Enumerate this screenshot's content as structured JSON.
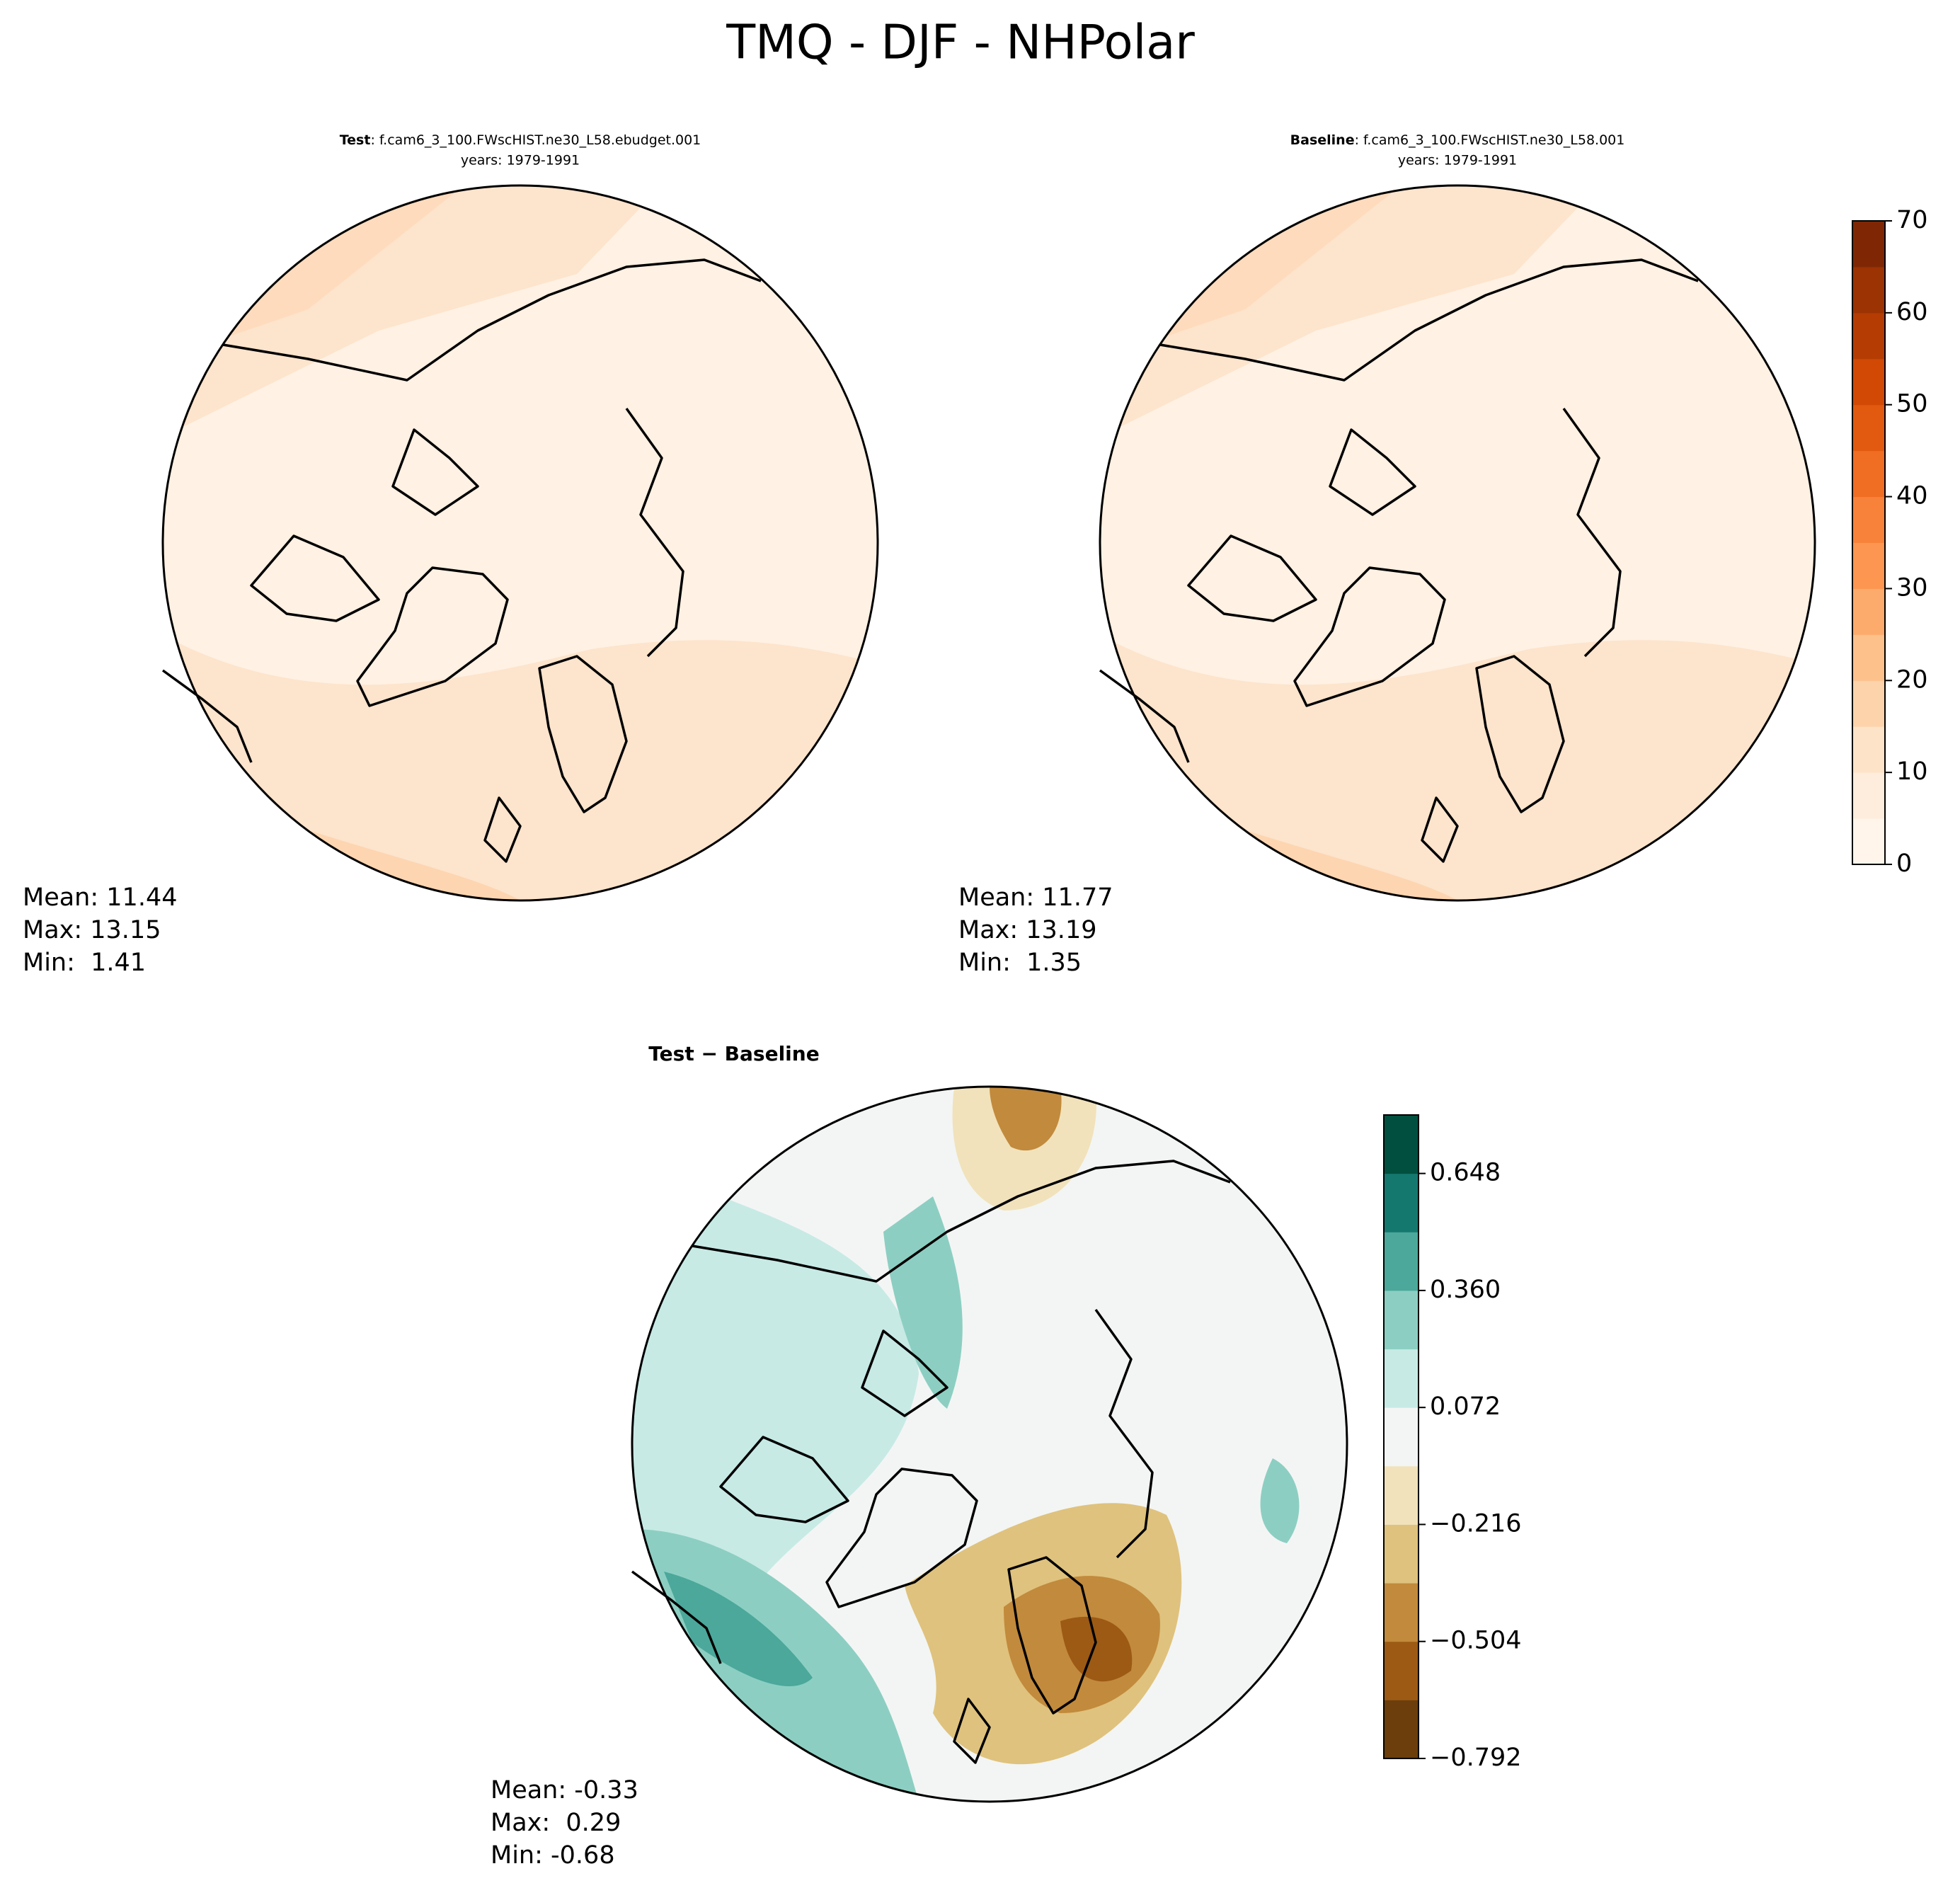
{
  "title": "TMQ - DJF - NHPolar",
  "chart_data": [
    {
      "type": "map",
      "label": "Test",
      "title": ": f.cam6_3_100.FWscHIST.ne30_L58.ebudget.001",
      "subtitle": "years: 1979-1991",
      "stats": [
        "Mean: 11.44",
        "Max: 13.15",
        "Min:  1.41"
      ],
      "palette": "tmq"
    },
    {
      "type": "map",
      "label": "Baseline",
      "title": ": f.cam6_3_100.FWscHIST.ne30_L58.001",
      "subtitle": "years: 1979-1991",
      "stats": [
        "Mean: 11.77",
        "Max: 13.19",
        "Min:  1.35"
      ],
      "palette": "tmq",
      "colorbar": {
        "clim": [
          0,
          70
        ],
        "cticks": [
          0,
          10,
          20,
          30,
          40,
          50,
          60,
          70
        ],
        "colors": [
          "#fff5eb",
          "#feeddc",
          "#fde3c8",
          "#fdd3ab",
          "#fdc18c",
          "#fdab6c",
          "#fd9650",
          "#f8823a",
          "#f06d24",
          "#e25a0f",
          "#d14905",
          "#b53d03",
          "#9c3303",
          "#7f2704"
        ]
      }
    },
    {
      "type": "map",
      "label": "Test − Baseline",
      "stats": [
        "Mean: -0.33",
        "Max:  0.29",
        "Min: -0.68"
      ],
      "palette": "diff",
      "colorbar": {
        "clim": [
          -0.792,
          0.792
        ],
        "cticks": [
          {
            "value": -0.792,
            "label": "−0.792"
          },
          {
            "value": -0.504,
            "label": "−0.504"
          },
          {
            "value": -0.216,
            "label": "−0.216"
          },
          0.072,
          {
            "value": 0.36,
            "label": "0.360"
          },
          0.648
        ],
        "colors": [
          "#6b3e0c",
          "#9c5a14",
          "#c28a3c",
          "#dfc27d",
          "#f1e2bb",
          "#f3f5f4",
          "#c7eae5",
          "#8ccfc2",
          "#4ba89b",
          "#15786f",
          "#01503f"
        ]
      }
    }
  ]
}
